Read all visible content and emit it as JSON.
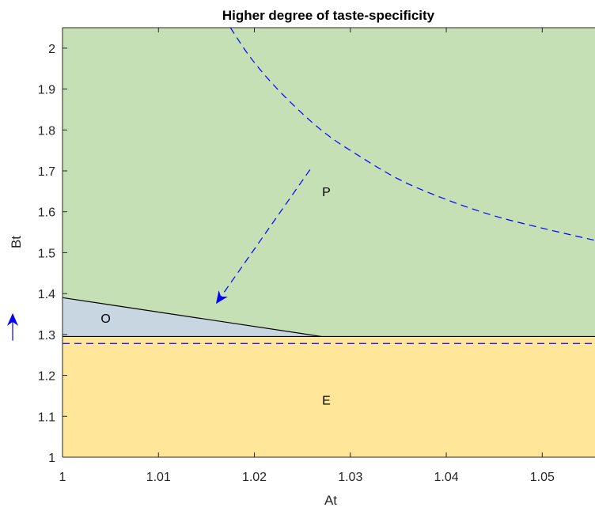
{
  "chart_data": {
    "type": "area",
    "title": "Higher degree of taste-specificity",
    "xlabel": "At",
    "ylabel": "Bt",
    "xlim": [
      1,
      1.0555
    ],
    "ylim": [
      1,
      2.05
    ],
    "x_ticks": [
      1,
      1.01,
      1.02,
      1.03,
      1.04,
      1.05
    ],
    "x_tick_labels": [
      "1",
      "1.01",
      "1.02",
      "1.03",
      "1.04",
      "1.05"
    ],
    "y_ticks": [
      1,
      1.1,
      1.2,
      1.3,
      1.4,
      1.5,
      1.6,
      1.7,
      1.8,
      1.9,
      2
    ],
    "y_tick_labels": [
      "1",
      "1.1",
      "1.2",
      "1.3",
      "1.4",
      "1.5",
      "1.6",
      "1.7",
      "1.8",
      "1.9",
      "2"
    ],
    "regions": [
      {
        "label": "P",
        "color": "#c5e0b4",
        "label_at": [
          1.0275,
          1.65
        ]
      },
      {
        "label": "O",
        "color": "#c8d6e2",
        "label_at": [
          1.0045,
          1.34
        ]
      },
      {
        "label": "E",
        "color": "#ffe699",
        "label_at": [
          1.0275,
          1.14
        ]
      }
    ],
    "boundaries": [
      {
        "name": "O-P boundary",
        "color": "#000000",
        "style": "solid",
        "x": [
          1,
          1.027
        ],
        "y": [
          1.39,
          1.295
        ]
      },
      {
        "name": "E upper boundary",
        "color": "#000000",
        "style": "solid",
        "x": [
          1,
          1.0555
        ],
        "y": [
          1.295,
          1.295
        ]
      }
    ],
    "series": [
      {
        "style": "dashed",
        "color": "#0000ff",
        "x": [
          1.0175,
          1.0195,
          1.022,
          1.025,
          1.0275,
          1.03,
          1.035,
          1.04,
          1.045,
          1.05,
          1.0555
        ],
        "y": [
          2.05,
          1.98,
          1.91,
          1.84,
          1.79,
          1.75,
          1.68,
          1.63,
          1.59,
          1.56,
          1.53
        ]
      },
      {
        "style": "dashed",
        "color": "#0000ff",
        "x": [
          1,
          1.0555
        ],
        "y": [
          1.278,
          1.278
        ]
      }
    ],
    "annotations": [
      {
        "type": "arrow",
        "style": "dashed",
        "color": "#0000ff",
        "from": [
          1.0258,
          1.703
        ],
        "to": [
          1.016,
          1.375
        ]
      },
      {
        "type": "arrow",
        "style": "solid",
        "color": "#0000ff",
        "outside_axis": "left",
        "from": [
          null,
          1.285
        ],
        "to": [
          null,
          1.325
        ]
      }
    ],
    "grid": false,
    "legend": "none"
  }
}
